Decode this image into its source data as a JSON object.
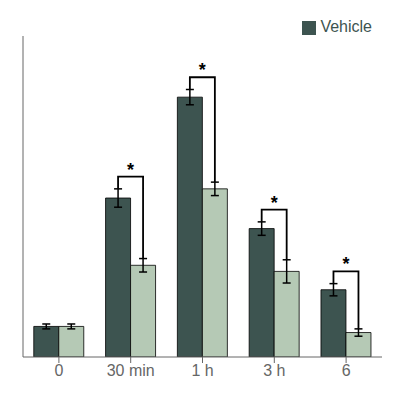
{
  "chart_data": {
    "type": "bar",
    "categories": [
      "0",
      "30 min",
      "1 h",
      "3 h",
      "6"
    ],
    "series": [
      {
        "name": "Vehicle",
        "color": "#3d5450",
        "values": [
          0.1,
          0.52,
          0.85,
          0.42,
          0.22
        ],
        "errors": [
          0.008,
          0.03,
          0.025,
          0.022,
          0.02
        ]
      },
      {
        "color": "#b5c9b5",
        "values": [
          0.1,
          0.3,
          0.55,
          0.28,
          0.08
        ],
        "errors": [
          0.008,
          0.022,
          0.022,
          0.038,
          0.012
        ]
      }
    ],
    "annotations": [
      {
        "text": "*",
        "category": "30 min",
        "left_top": 0.55,
        "right_top": 0.322,
        "y": 0.59
      },
      {
        "text": "*",
        "category": "1 h",
        "left_top": 0.875,
        "right_top": 0.572,
        "y": 0.915
      },
      {
        "text": "*",
        "category": "3 h",
        "left_top": 0.442,
        "right_top": 0.318,
        "y": 0.482
      },
      {
        "text": "*",
        "category": "6",
        "left_top": 0.24,
        "right_top": 0.092,
        "y": 0.28
      }
    ],
    "ylim": [
      0,
      1.05
    ],
    "tick_labels": "x",
    "legend": "upper right",
    "grid": false
  }
}
